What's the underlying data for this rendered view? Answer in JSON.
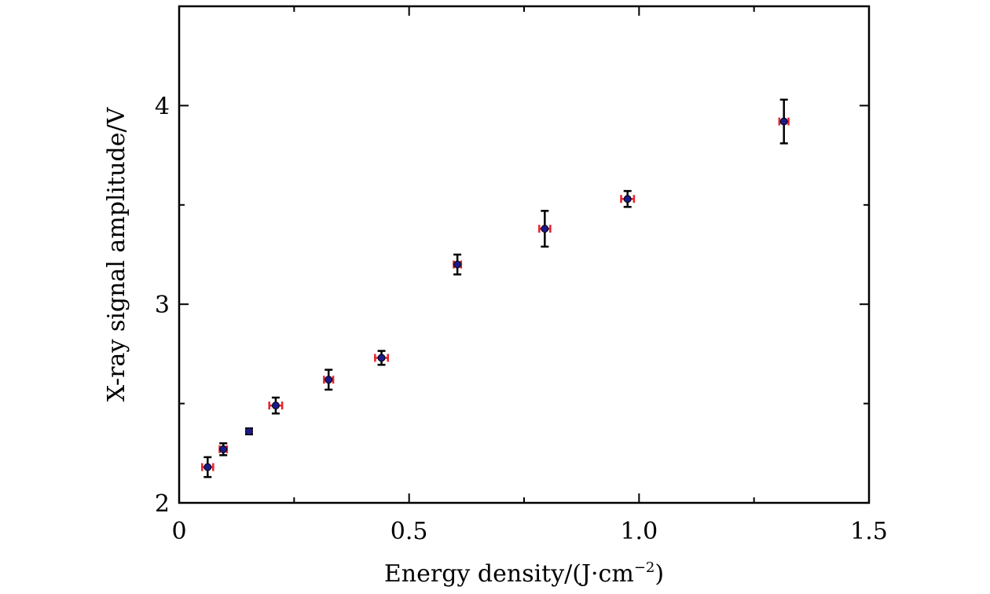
{
  "chart_data": {
    "type": "scatter",
    "title": "",
    "xlabel": {
      "main": "Energy density/(J·cm",
      "sup": "−2",
      "close": ")"
    },
    "ylabel": "X-ray signal amplitude/V",
    "xlim": [
      0,
      1.5
    ],
    "ylim": [
      2,
      4.5
    ],
    "x_ticks": [
      {
        "value": 0,
        "label": "0"
      },
      {
        "value": 0.5,
        "label": "0.5"
      },
      {
        "value": 1.0,
        "label": "1.0"
      },
      {
        "value": 1.5,
        "label": "1.5"
      }
    ],
    "x_minor_ticks": [
      0.25,
      0.75,
      1.25
    ],
    "y_ticks": [
      {
        "value": 2,
        "label": "2"
      },
      {
        "value": 3,
        "label": "3"
      },
      {
        "value": 4,
        "label": "4"
      }
    ],
    "y_minor_ticks": [
      2.5,
      3.5
    ],
    "grid": false,
    "legend": "none",
    "colors": {
      "marker": "#1a1a8c",
      "x_error": "#e8202a",
      "y_error": "#000000",
      "axis": "#000000"
    },
    "points": [
      {
        "x": 0.062,
        "y": 2.18,
        "xerr": 0.012,
        "yerr": 0.05
      },
      {
        "x": 0.096,
        "y": 2.27,
        "xerr": 0.008,
        "yerr": 0.03
      },
      {
        "x": 0.152,
        "y": 2.36,
        "xerr": 0.006,
        "yerr": 0.015
      },
      {
        "x": 0.21,
        "y": 2.49,
        "xerr": 0.014,
        "yerr": 0.04
      },
      {
        "x": 0.325,
        "y": 2.62,
        "xerr": 0.01,
        "yerr": 0.05
      },
      {
        "x": 0.44,
        "y": 2.73,
        "xerr": 0.014,
        "yerr": 0.035
      },
      {
        "x": 0.605,
        "y": 3.2,
        "xerr": 0.008,
        "yerr": 0.05
      },
      {
        "x": 0.795,
        "y": 3.38,
        "xerr": 0.012,
        "yerr": 0.09
      },
      {
        "x": 0.975,
        "y": 3.53,
        "xerr": 0.014,
        "yerr": 0.04
      },
      {
        "x": 1.315,
        "y": 3.92,
        "xerr": 0.01,
        "yerr": 0.11
      }
    ]
  }
}
